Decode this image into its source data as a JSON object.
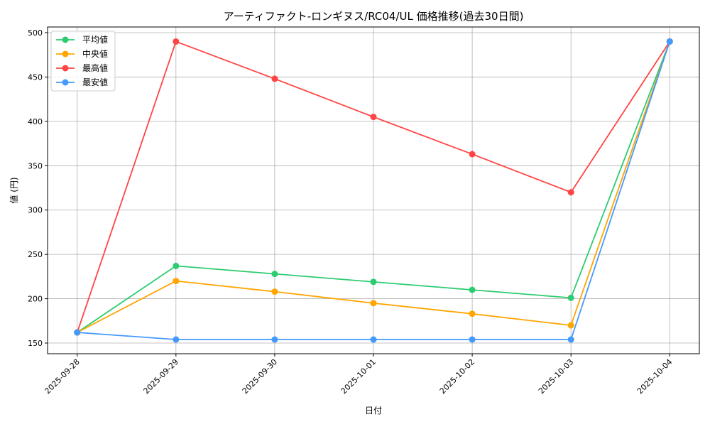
{
  "chart_data": {
    "type": "line",
    "title": "アーティファクト-ロンギヌス/RC04/UL 価格推移(過去30日間)",
    "xlabel": "日付",
    "ylabel": "値 (円)",
    "categories": [
      "2025-09-28",
      "2025-09-29",
      "2025-09-30",
      "2025-10-01",
      "2025-10-02",
      "2025-10-03",
      "2025-10-04"
    ],
    "yticks": [
      150,
      200,
      250,
      300,
      350,
      400,
      450,
      500
    ],
    "ylim": [
      138,
      506.4
    ],
    "grid": true,
    "legend_position": "top-left",
    "series": [
      {
        "name": "平均値",
        "color": "#2ecc71",
        "values": [
          162,
          237,
          228,
          219,
          210,
          201,
          490
        ]
      },
      {
        "name": "中央値",
        "color": "#ffa500",
        "values": [
          162,
          220,
          208,
          195,
          183,
          170,
          490
        ]
      },
      {
        "name": "最高値",
        "color": "#ff4444",
        "values": [
          162,
          490,
          448,
          405,
          363,
          320,
          490
        ]
      },
      {
        "name": "最安値",
        "color": "#4499ff",
        "values": [
          162,
          154,
          154,
          154,
          154,
          154,
          490
        ]
      }
    ]
  }
}
